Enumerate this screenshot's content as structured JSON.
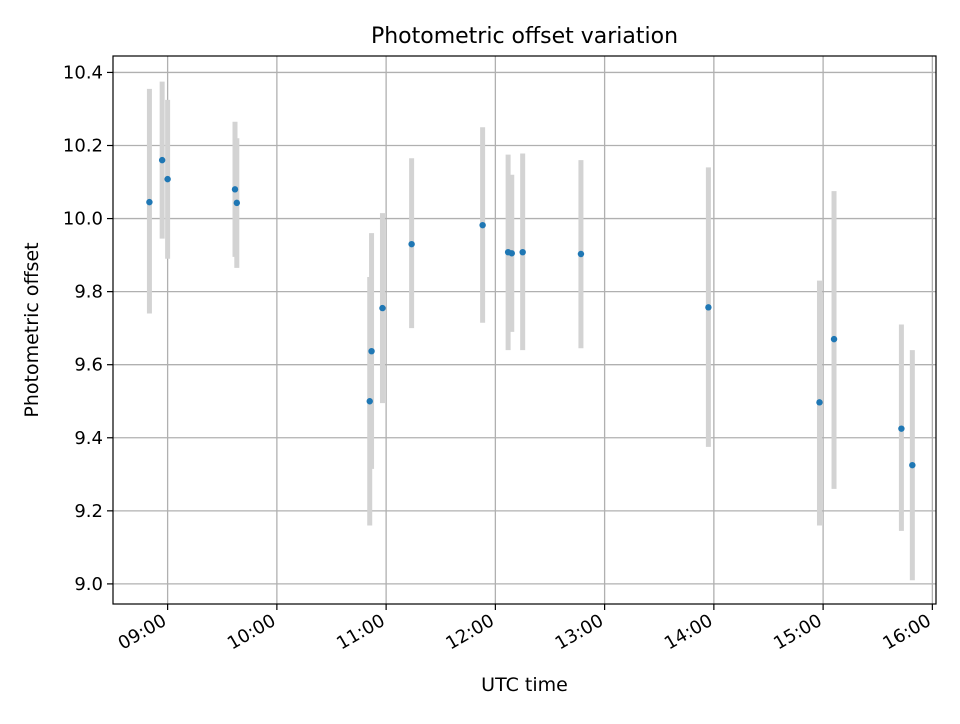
{
  "chart_data": {
    "type": "scatter",
    "title": "Photometric offset variation",
    "xlabel": "UTC time",
    "ylabel": "Photometric offset",
    "x_axis_type": "time",
    "x_ticks": [
      "09:00",
      "10:00",
      "11:00",
      "12:00",
      "13:00",
      "14:00",
      "15:00",
      "16:00"
    ],
    "y_ticks": [
      "9.0",
      "9.2",
      "9.4",
      "9.6",
      "9.8",
      "10.0",
      "10.2",
      "10.4"
    ],
    "xlim": [
      "08:30",
      "16:02"
    ],
    "ylim": [
      8.945,
      10.445
    ],
    "grid": true,
    "legend": "none",
    "x_tick_rotation_deg": 30,
    "marker_color": "#1f77b4",
    "errorbar_color": "#d3d3d3",
    "grid_color": "#b0b0b0",
    "points": [
      {
        "x": "08:50",
        "y": 10.045,
        "ylow": 9.74,
        "yhigh": 10.355
      },
      {
        "x": "08:57",
        "y": 10.16,
        "ylow": 9.945,
        "yhigh": 10.375
      },
      {
        "x": "09:00",
        "y": 10.108,
        "ylow": 9.89,
        "yhigh": 10.325
      },
      {
        "x": "09:37",
        "y": 10.08,
        "ylow": 9.895,
        "yhigh": 10.265
      },
      {
        "x": "09:38",
        "y": 10.043,
        "ylow": 9.865,
        "yhigh": 10.22
      },
      {
        "x": "10:51",
        "y": 9.5,
        "ylow": 9.16,
        "yhigh": 9.84
      },
      {
        "x": "10:52",
        "y": 9.637,
        "ylow": 9.315,
        "yhigh": 9.96
      },
      {
        "x": "10:58",
        "y": 9.755,
        "ylow": 9.495,
        "yhigh": 10.015
      },
      {
        "x": "11:14",
        "y": 9.93,
        "ylow": 9.7,
        "yhigh": 10.165
      },
      {
        "x": "11:53",
        "y": 9.982,
        "ylow": 9.715,
        "yhigh": 10.25
      },
      {
        "x": "12:07",
        "y": 9.908,
        "ylow": 9.64,
        "yhigh": 10.175
      },
      {
        "x": "12:09",
        "y": 9.905,
        "ylow": 9.69,
        "yhigh": 10.12
      },
      {
        "x": "12:15",
        "y": 9.908,
        "ylow": 9.64,
        "yhigh": 10.178
      },
      {
        "x": "12:47",
        "y": 9.903,
        "ylow": 9.645,
        "yhigh": 10.16
      },
      {
        "x": "13:57",
        "y": 9.757,
        "ylow": 9.375,
        "yhigh": 10.14
      },
      {
        "x": "14:58",
        "y": 9.497,
        "ylow": 9.16,
        "yhigh": 9.83
      },
      {
        "x": "15:06",
        "y": 9.67,
        "ylow": 9.26,
        "yhigh": 10.075
      },
      {
        "x": "15:43",
        "y": 9.425,
        "ylow": 9.145,
        "yhigh": 9.71
      },
      {
        "x": "15:49",
        "y": 9.325,
        "ylow": 9.01,
        "yhigh": 9.64
      }
    ]
  }
}
